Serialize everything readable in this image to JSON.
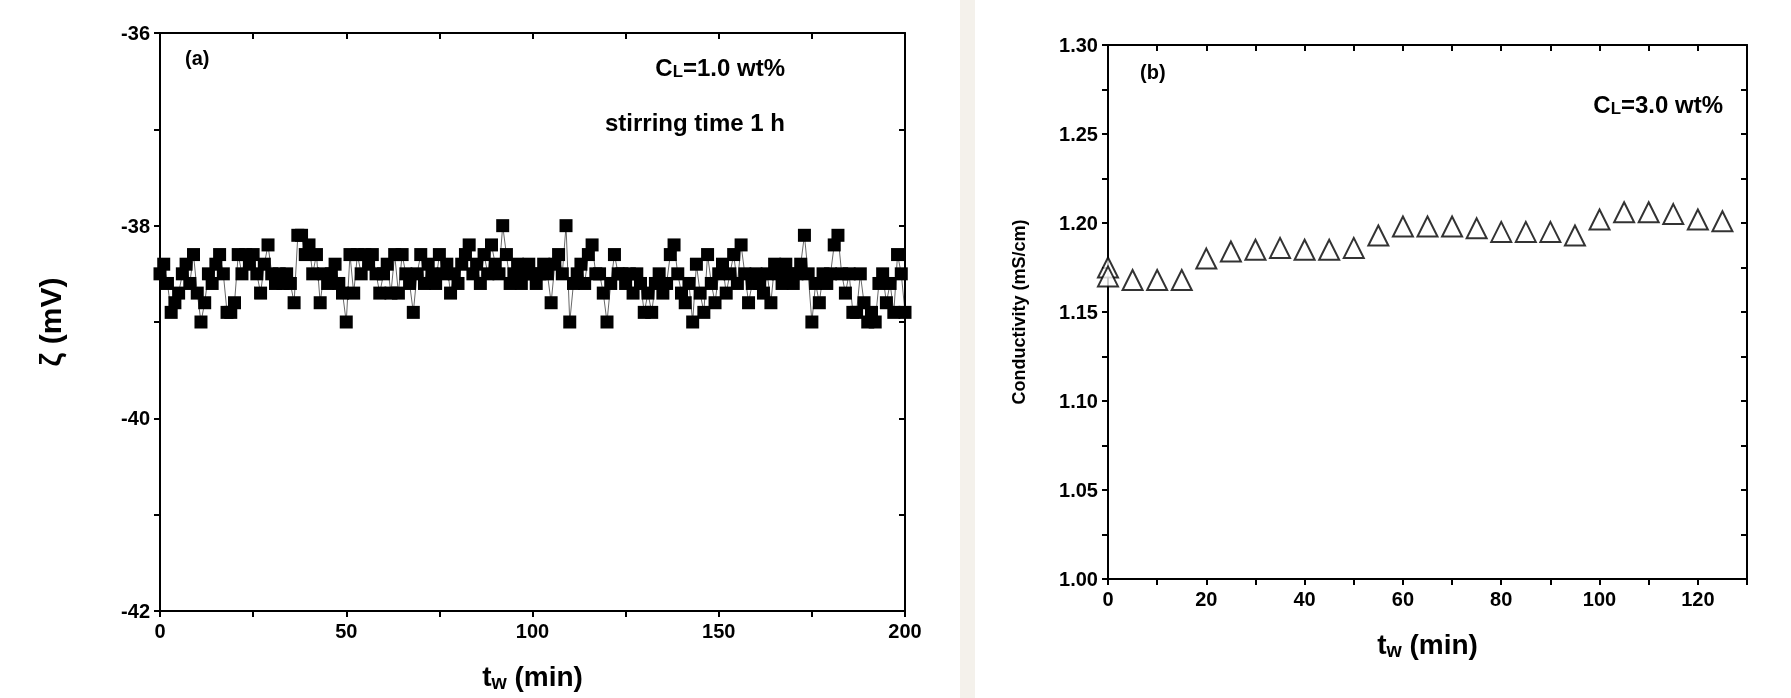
{
  "chart_data": [
    {
      "type": "line",
      "xlabel": "t$_{w}$ (min)",
      "ylabel": "ζ (mV)",
      "annotations": [
        "(a)",
        "C$_{L}$=1.0 wt%",
        "stirring time 1 h"
      ],
      "marker": "square",
      "line_style": "solid",
      "xlim": [
        0,
        200
      ],
      "xticks": [
        0,
        {
          "value": 25,
          "label": null
        },
        50,
        {
          "value": 75,
          "label": null
        },
        100,
        {
          "value": 125,
          "label": null
        },
        150,
        {
          "value": 175,
          "label": null
        },
        200
      ],
      "ylim": [
        -42,
        -36
      ],
      "yticks": [
        -42,
        {
          "value": -41,
          "label": null
        },
        -40,
        {
          "value": -39,
          "label": null
        },
        -38,
        {
          "value": -37,
          "label": null
        },
        -36
      ],
      "x": [
        0,
        1,
        2,
        3,
        4,
        5,
        6,
        7,
        8,
        9,
        10,
        11,
        12,
        13,
        14,
        15,
        16,
        17,
        18,
        19,
        20,
        21,
        22,
        23,
        24,
        25,
        26,
        27,
        28,
        29,
        30,
        31,
        32,
        33,
        34,
        35,
        36,
        37,
        38,
        39,
        40,
        41,
        42,
        43,
        44,
        45,
        46,
        47,
        48,
        49,
        50,
        51,
        52,
        53,
        54,
        55,
        56,
        57,
        58,
        59,
        60,
        61,
        62,
        63,
        64,
        65,
        66,
        67,
        68,
        69,
        70,
        71,
        72,
        73,
        74,
        75,
        76,
        77,
        78,
        79,
        80,
        81,
        82,
        83,
        84,
        85,
        86,
        87,
        88,
        89,
        90,
        91,
        92,
        93,
        94,
        95,
        96,
        97,
        98,
        99,
        100,
        101,
        102,
        103,
        104,
        105,
        106,
        107,
        108,
        109,
        110,
        111,
        112,
        113,
        114,
        115,
        116,
        117,
        118,
        119,
        120,
        121,
        122,
        123,
        124,
        125,
        126,
        127,
        128,
        129,
        130,
        131,
        132,
        133,
        134,
        135,
        136,
        137,
        138,
        139,
        140,
        141,
        142,
        143,
        144,
        145,
        146,
        147,
        148,
        149,
        150,
        151,
        152,
        153,
        154,
        155,
        156,
        157,
        158,
        159,
        160,
        161,
        162,
        163,
        164,
        165,
        166,
        167,
        168,
        169,
        170,
        171,
        172,
        173,
        174,
        175,
        176,
        177,
        178,
        179,
        180,
        181,
        182,
        183,
        184,
        185,
        186,
        187,
        188,
        189,
        190,
        191,
        192,
        193,
        194,
        195,
        196,
        197,
        198,
        199,
        200
      ],
      "series": [
        {
          "color": "#000000",
          "values": [
            -38.5,
            -38.4,
            -38.6,
            -38.9,
            -38.8,
            -38.7,
            -38.5,
            -38.4,
            -38.6,
            -38.3,
            -38.7,
            -39.0,
            -38.8,
            -38.5,
            -38.6,
            -38.4,
            -38.3,
            -38.5,
            -38.9,
            -38.9,
            -38.8,
            -38.3,
            -38.5,
            -38.3,
            -38.4,
            -38.3,
            -38.5,
            -38.7,
            -38.4,
            -38.2,
            -38.5,
            -38.6,
            -38.5,
            -38.6,
            -38.5,
            -38.6,
            -38.8,
            -38.1,
            -38.1,
            -38.3,
            -38.2,
            -38.5,
            -38.3,
            -38.8,
            -38.5,
            -38.6,
            -38.5,
            -38.4,
            -38.6,
            -38.7,
            -39.0,
            -38.3,
            -38.7,
            -38.3,
            -38.5,
            -38.3,
            -38.4,
            -38.3,
            -38.5,
            -38.7,
            -38.5,
            -38.4,
            -38.7,
            -38.3,
            -38.7,
            -38.3,
            -38.5,
            -38.6,
            -38.9,
            -38.5,
            -38.3,
            -38.6,
            -38.4,
            -38.5,
            -38.6,
            -38.3,
            -38.5,
            -38.4,
            -38.7,
            -38.5,
            -38.6,
            -38.4,
            -38.3,
            -38.2,
            -38.5,
            -38.4,
            -38.6,
            -38.3,
            -38.5,
            -38.2,
            -38.4,
            -38.5,
            -38.0,
            -38.3,
            -38.6,
            -38.5,
            -38.4,
            -38.6,
            -38.5,
            -38.4,
            -38.5,
            -38.6,
            -38.5,
            -38.4,
            -38.5,
            -38.8,
            -38.4,
            -38.3,
            -38.5,
            -38.0,
            -39.0,
            -38.6,
            -38.5,
            -38.4,
            -38.6,
            -38.3,
            -38.2,
            -38.5,
            -38.5,
            -38.7,
            -39.0,
            -38.6,
            -38.3,
            -38.5,
            -38.5,
            -38.6,
            -38.5,
            -38.7,
            -38.5,
            -38.6,
            -38.9,
            -38.7,
            -38.9,
            -38.6,
            -38.5,
            -38.7,
            -38.6,
            -38.3,
            -38.2,
            -38.5,
            -38.7,
            -38.8,
            -38.6,
            -39.0,
            -38.4,
            -38.7,
            -38.9,
            -38.3,
            -38.6,
            -38.8,
            -38.5,
            -38.4,
            -38.7,
            -38.5,
            -38.3,
            -38.6,
            -38.2,
            -38.5,
            -38.8,
            -38.6,
            -38.5,
            -38.6,
            -38.7,
            -38.5,
            -38.8,
            -38.4,
            -38.5,
            -38.6,
            -38.4,
            -38.5,
            -38.6,
            -38.5,
            -38.4,
            -38.1,
            -38.5,
            -39.0,
            -38.6,
            -38.8,
            -38.5,
            -38.6,
            -38.5,
            -38.2,
            -38.1,
            -38.5,
            -38.7,
            -38.5,
            -38.9,
            -38.9,
            -38.5,
            -38.8,
            -39.0,
            -38.9,
            -39.0,
            -38.6,
            -38.5,
            -38.8,
            -38.6,
            -38.9,
            -38.3,
            -38.5,
            -38.9
          ]
        }
      ]
    },
    {
      "type": "scatter",
      "xlabel": "t$_{w}$ (min)",
      "ylabel": "Conductivity (mS/cm)",
      "annotations": [
        "(b)",
        "C$_{L}$=3.0 wt%"
      ],
      "marker": "triangle",
      "xlim": [
        0,
        130
      ],
      "xticks": [
        0,
        {
          "value": 10,
          "label": null
        },
        20,
        {
          "value": 30,
          "label": null
        },
        40,
        {
          "value": 50,
          "label": null
        },
        60,
        {
          "value": 70,
          "label": null
        },
        80,
        {
          "value": 90,
          "label": null
        },
        100,
        {
          "value": 110,
          "label": null
        },
        120,
        {
          "value": 130,
          "label": null
        }
      ],
      "ylim": [
        1.0,
        1.3
      ],
      "yticks": [
        {
          "value": 1.0,
          "label": "1.00"
        },
        {
          "value": 1.025,
          "label": null
        },
        1.05,
        {
          "value": 1.075,
          "label": null
        },
        {
          "value": 1.1,
          "label": "1.10"
        },
        {
          "value": 1.125,
          "label": null
        },
        1.15,
        {
          "value": 1.175,
          "label": null
        },
        {
          "value": 1.2,
          "label": "1.20"
        },
        {
          "value": 1.225,
          "label": null
        },
        1.25,
        {
          "value": 1.275,
          "label": null
        },
        {
          "value": 1.3,
          "label": "1.30"
        }
      ],
      "x": [
        0,
        0,
        5,
        10,
        15,
        20,
        25,
        30,
        35,
        40,
        45,
        50,
        55,
        60,
        65,
        70,
        75,
        80,
        85,
        90,
        95,
        100,
        105,
        110,
        115,
        120,
        125
      ],
      "series": [
        {
          "color": "#000000",
          "values": [
            1.175,
            1.17,
            1.168,
            1.168,
            1.168,
            1.18,
            1.184,
            1.185,
            1.186,
            1.185,
            1.185,
            1.186,
            1.193,
            1.198,
            1.198,
            1.198,
            1.197,
            1.195,
            1.195,
            1.195,
            1.193,
            1.202,
            1.206,
            1.206,
            1.205,
            1.202,
            1.201
          ]
        }
      ]
    }
  ]
}
